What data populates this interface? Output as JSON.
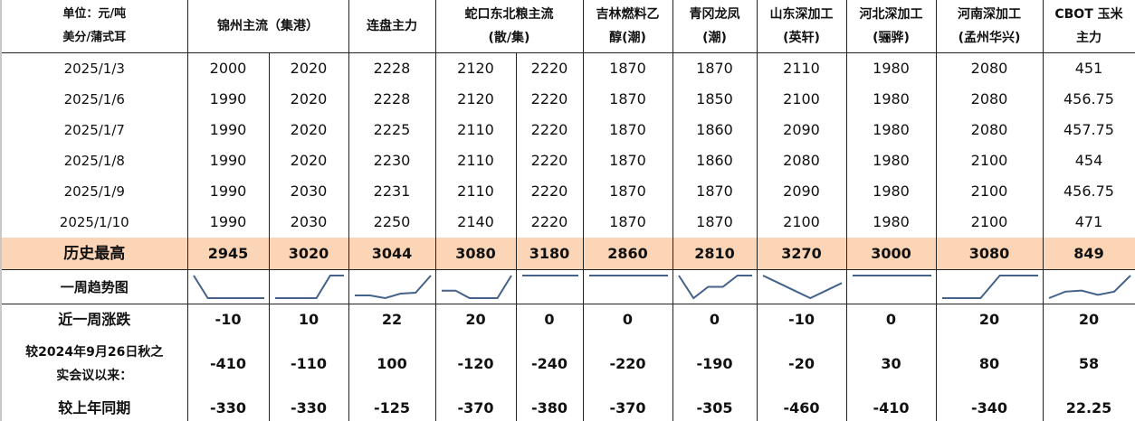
{
  "header": {
    "unit_line1": "单位：元/吨",
    "unit_line2": "美分/蒲式耳",
    "columns": [
      {
        "label": "锦州主流（集港）",
        "span": 2
      },
      {
        "label": "连盘主力",
        "span": 1
      },
      {
        "label": "蛇口东北粮主流\n(散/集)",
        "span": 2
      },
      {
        "label": "吉林燃料乙\n醇(潮)",
        "span": 1
      },
      {
        "label": "青冈龙凤\n(潮)",
        "span": 1
      },
      {
        "label": "山东深加工\n(英轩)",
        "span": 1
      },
      {
        "label": "河北深加工\n(骊骅)",
        "span": 1
      },
      {
        "label": "河南深加工\n(孟州华兴)",
        "span": 1
      },
      {
        "label": "CBOT 玉米\n主力",
        "span": 1
      }
    ]
  },
  "rows": [
    {
      "date": "2025/1/3",
      "values": [
        "2000",
        "2020",
        "2228",
        "2120",
        "2220",
        "1870",
        "1870",
        "2110",
        "1980",
        "2080",
        "451"
      ]
    },
    {
      "date": "2025/1/6",
      "values": [
        "1990",
        "2020",
        "2228",
        "2120",
        "2220",
        "1870",
        "1850",
        "2100",
        "1980",
        "2080",
        "456.75"
      ]
    },
    {
      "date": "2025/1/7",
      "values": [
        "1990",
        "2020",
        "2225",
        "2110",
        "2220",
        "1870",
        "1860",
        "2090",
        "1980",
        "2080",
        "457.75"
      ]
    },
    {
      "date": "2025/1/8",
      "values": [
        "1990",
        "2020",
        "2230",
        "2110",
        "2220",
        "1870",
        "1860",
        "2080",
        "1980",
        "2100",
        "454"
      ]
    },
    {
      "date": "2025/1/9",
      "values": [
        "1990",
        "2030",
        "2231",
        "2110",
        "2220",
        "1870",
        "1870",
        "2090",
        "1980",
        "2100",
        "456.75"
      ]
    },
    {
      "date": "2025/1/10",
      "values": [
        "1990",
        "2030",
        "2250",
        "2140",
        "2220",
        "1870",
        "1870",
        "2100",
        "1980",
        "2100",
        "471"
      ]
    }
  ],
  "highest": {
    "label": "历史最高",
    "values": [
      "2945",
      "3020",
      "3044",
      "3080",
      "3180",
      "2860",
      "2810",
      "3270",
      "3000",
      "3080",
      "849"
    ]
  },
  "trend": {
    "label": "一周趋势图",
    "line_color": "#44628a"
  },
  "weekly_change": {
    "label": "近一周涨跌",
    "values": [
      "-10",
      "10",
      "22",
      "20",
      "0",
      "0",
      "0",
      "-10",
      "0",
      "20",
      "20"
    ]
  },
  "since_meeting": {
    "label_line1": "较2024年9月26日秋之",
    "label_line2": "实会议以来：",
    "values": [
      "-410",
      "-110",
      "100",
      "-120",
      "-240",
      "-220",
      "-190",
      "-20",
      "30",
      "80",
      "58"
    ]
  },
  "yoy": {
    "label": "较上年同期",
    "values": [
      "-330",
      "-330",
      "-125",
      "-370",
      "-380",
      "-370",
      "-305",
      "-460",
      "-410",
      "-340",
      "22.25"
    ]
  },
  "colors": {
    "highlight_row": "#fbd5b5",
    "border": "#222222"
  }
}
